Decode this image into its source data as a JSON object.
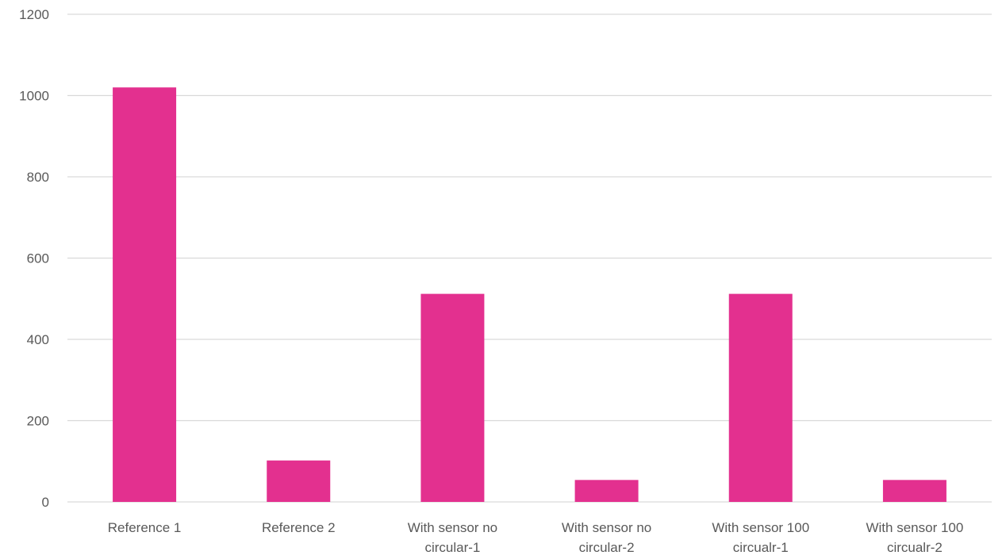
{
  "chart_data": {
    "type": "bar",
    "title": "",
    "xlabel": "",
    "ylabel": "",
    "categories": [
      [
        "Reference 1"
      ],
      [
        "Reference 2"
      ],
      [
        "With sensor no",
        "circular-1"
      ],
      [
        "With sensor no",
        "circular-2"
      ],
      [
        "With sensor 100",
        "circualr-1"
      ],
      [
        "With sensor 100",
        "circualr-2"
      ]
    ],
    "values": [
      1020,
      102,
      512,
      54,
      512,
      54
    ],
    "ylim": [
      0,
      1200
    ],
    "yticks": [
      "0",
      "200",
      "400",
      "600",
      "800",
      "1000",
      "1200"
    ],
    "grid": true,
    "legend": "none",
    "bar_color": "#e3308f"
  }
}
